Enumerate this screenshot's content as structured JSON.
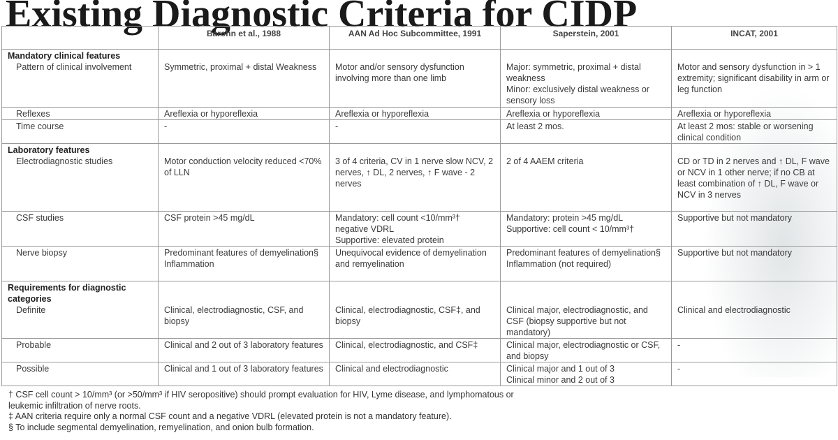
{
  "slide": {
    "title": "Existing Diagnostic Criteria for CIDP"
  },
  "table": {
    "headers": [
      "",
      "Barohn et al., 1988",
      "AAN Ad Hoc Subcommittee, 1991",
      "Saperstein, 2001",
      "INCAT, 2001"
    ],
    "sections": {
      "mandatory": "Mandatory clinical features",
      "laboratory": "Laboratory features",
      "requirements": "Requirements for diagnostic categories"
    },
    "rows": {
      "pattern": {
        "label": "Pattern of clinical involvement",
        "barohn": "Symmetric, proximal + distal Weakness",
        "aan": "Motor and/or sensory dysfunction involving more than one limb",
        "saperstein_1": "Major: symmetric, proximal + distal weakness",
        "saperstein_2": "Minor: exclusively distal weakness or sensory loss",
        "incat": "Motor and sensory dysfunction in > 1 extremity; significant disability in arm or leg function"
      },
      "reflexes": {
        "label": "Reflexes",
        "barohn": "Areflexia or hyporeflexia",
        "aan": "Areflexia or hyporeflexia",
        "saperstein": "Areflexia or hyporeflexia",
        "incat": "Areflexia or hyporeflexia"
      },
      "time_course": {
        "label": "Time course",
        "barohn": "-",
        "aan": "-",
        "saperstein": "At least 2 mos.",
        "incat": "At least 2 mos: stable or worsening clinical condition"
      },
      "electro": {
        "label": "Electrodiagnostic studies",
        "barohn": "Motor conduction velocity reduced <70% of LLN",
        "aan": "3 of 4 criteria, CV in 1 nerve slow NCV, 2 nerves, ↑ DL, 2 nerves, ↑ F wave - 2 nerves",
        "saperstein": "2 of 4 AAEM criteria",
        "incat": "CD or TD in 2 nerves and ↑ DL, F wave or NCV in 1 other nerve; if no CB at least combination of ↑ DL, F wave or NCV in 3 nerves"
      },
      "csf": {
        "label": "CSF studies",
        "barohn": "CSF protein >45 mg/dL",
        "aan_1": "Mandatory: cell count <10/mm³† negative VDRL",
        "aan_2": "Supportive: elevated protein",
        "saperstein_1": "Mandatory: protein >45 mg/dL",
        "saperstein_2": "Supportive: cell count < 10/mm³†",
        "incat": "Supportive but not mandatory"
      },
      "biopsy": {
        "label": "Nerve biopsy",
        "barohn_1": "Predominant features of demyelination§",
        "barohn_2": "Inflammation",
        "aan": "Unequivocal evidence of demyelination and remyelination",
        "saperstein_1": "Predominant features of demyelination§",
        "saperstein_2": "Inflammation (not required)",
        "incat": "Supportive but not mandatory"
      },
      "definite": {
        "label": "Definite",
        "barohn": "Clinical, electrodiagnostic, CSF, and biopsy",
        "aan": "Clinical, electrodiagnostic, CSF‡, and biopsy",
        "saperstein": "Clinical major, electrodiagnostic, and CSF (biopsy supportive but not mandatory)",
        "incat": "Clinical and electrodiagnostic"
      },
      "probable": {
        "label": "Probable",
        "barohn": "Clinical and 2 out of 3 laboratory features",
        "aan": "Clinical, electrodiagnostic, and CSF‡",
        "saperstein": "Clinical major, electrodiagnostic or CSF, and biopsy",
        "incat": "-"
      },
      "possible": {
        "label": "Possible",
        "barohn": "Clinical and 1 out of 3 laboratory features",
        "aan": "Clinical and electrodiagnostic",
        "saperstein_1": "Clinical major and 1 out of 3",
        "saperstein_2": "Clinical minor and 2 out of 3",
        "incat": "-"
      }
    }
  },
  "footnotes": {
    "dagger": "† CSF cell count > 10/mm³ (or >50/mm³ if HIV seropositive) should prompt evaluation for HIV, Lyme disease, and lymphomatous or leukemic infiltration of nerve roots.",
    "double_dagger": "‡ AAN criteria require only a normal CSF count and a negative VDRL (elevated protein is not a mandatory feature).",
    "section": "§ To include segmental demyelination, remyelination, and onion bulb formation."
  }
}
